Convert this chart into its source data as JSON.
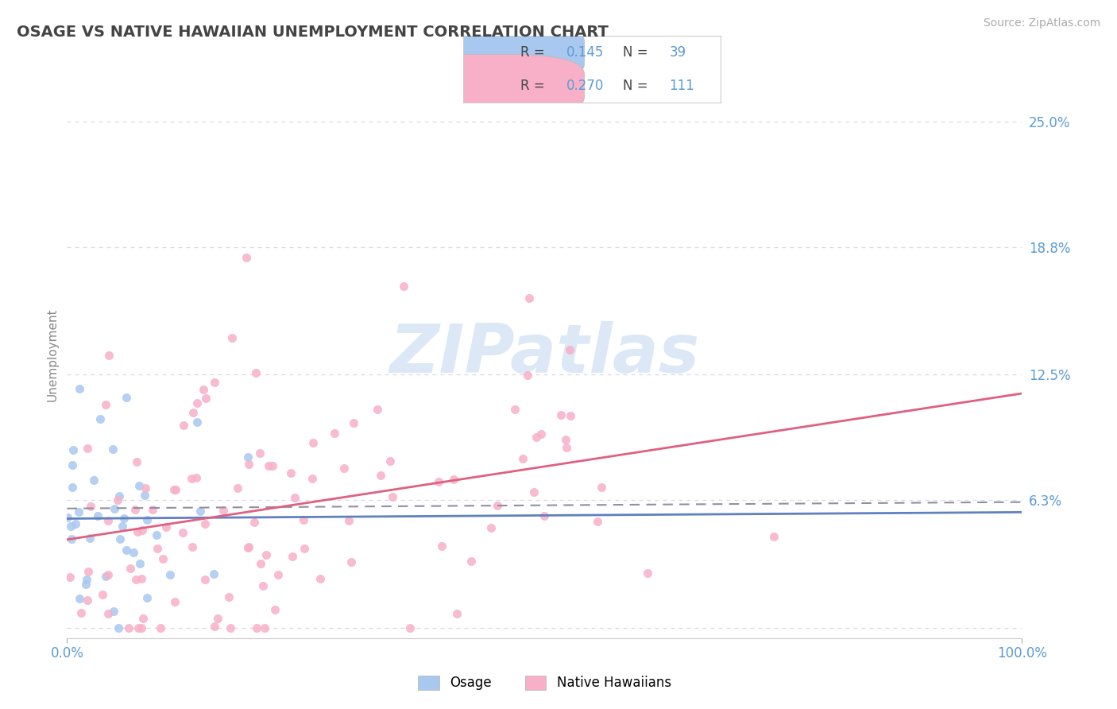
{
  "title": "OSAGE VS NATIVE HAWAIIAN UNEMPLOYMENT CORRELATION CHART",
  "source": "Source: ZipAtlas.com",
  "ylabel": "Unemployment",
  "yticks": [
    0.0,
    0.063,
    0.125,
    0.188,
    0.25
  ],
  "ytick_labels": [
    "",
    "6.3%",
    "12.5%",
    "18.8%",
    "25.0%"
  ],
  "xlim": [
    0.0,
    1.0
  ],
  "ylim": [
    -0.005,
    0.275
  ],
  "osage_N": 39,
  "native_N": 111,
  "osage_R": "0.145",
  "native_R": "0.270",
  "osage_color": "#a8c8f0",
  "native_color": "#f8b0c8",
  "trend_osage_color": "#6080c0",
  "trend_native_color": "#e06080",
  "trend_osage_dash_color": "#9090a0",
  "background_color": "#ffffff",
  "grid_color": "#d8d8e8",
  "title_color": "#444444",
  "axis_label_color": "#5b9bd5",
  "legend_value_color": "#5b9bd5",
  "watermark_color": "#dce8f5"
}
